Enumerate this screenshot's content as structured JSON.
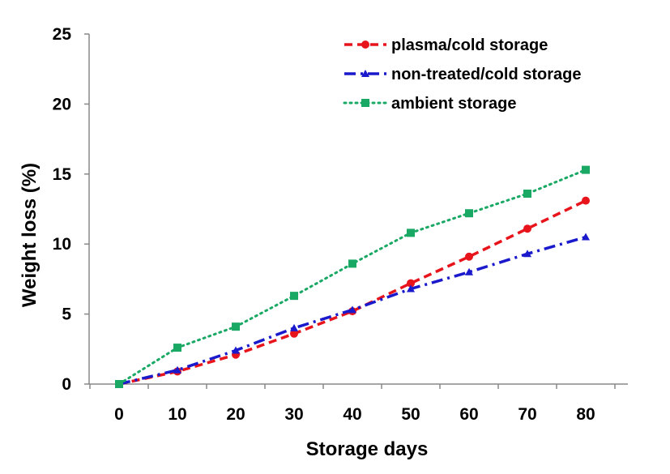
{
  "chart_data": {
    "type": "line",
    "title": "",
    "xlabel": "Storage days",
    "ylabel": "Weight loss (%)",
    "x": [
      0,
      10,
      20,
      30,
      40,
      50,
      60,
      70,
      80
    ],
    "xlim": [
      0,
      80
    ],
    "ylim": [
      0,
      25
    ],
    "xticks": [
      "0",
      "10",
      "20",
      "30",
      "40",
      "50",
      "60",
      "70",
      "80"
    ],
    "yticks": [
      "0",
      "5",
      "10",
      "15",
      "20",
      "25"
    ],
    "grid": false,
    "legend_position": "top-right",
    "series": [
      {
        "name": "plasma/cold storage",
        "color": "#e8141c",
        "line_style": "dashed",
        "marker": "circle",
        "values": [
          0,
          0.9,
          2.1,
          3.6,
          5.2,
          7.2,
          9.1,
          11.1,
          13.1
        ]
      },
      {
        "name": "non-treated/cold storage",
        "color": "#1a1acc",
        "line_style": "dash-dot",
        "marker": "triangle",
        "values": [
          0,
          1.0,
          2.4,
          4.0,
          5.3,
          6.8,
          8.0,
          9.3,
          10.5
        ]
      },
      {
        "name": "ambient storage",
        "color": "#1aa865",
        "line_style": "dotted",
        "marker": "square",
        "values": [
          0,
          2.6,
          4.1,
          6.3,
          8.6,
          10.8,
          12.2,
          13.6,
          15.3
        ]
      }
    ]
  }
}
